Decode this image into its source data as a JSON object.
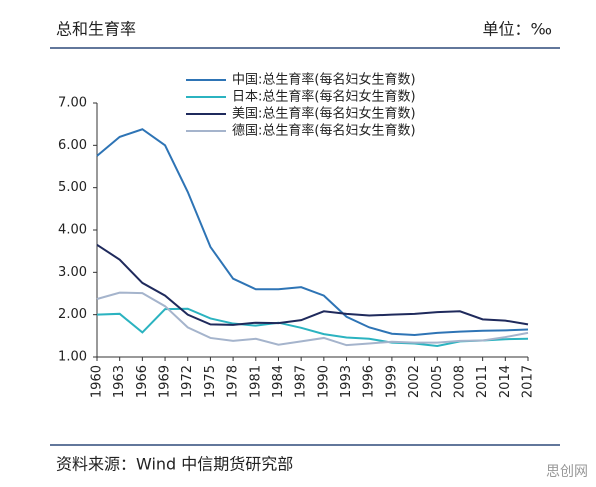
{
  "header": {
    "title": "总和生育率",
    "unit": "单位：‰"
  },
  "footer": {
    "source": "资料来源：Wind  中信期货研究部"
  },
  "watermark": "思创网",
  "chart_data": {
    "type": "line",
    "x": [
      1960,
      1963,
      1966,
      1969,
      1972,
      1975,
      1978,
      1981,
      1984,
      1987,
      1990,
      1993,
      1996,
      1999,
      2002,
      2005,
      2008,
      2011,
      2014,
      2017
    ],
    "xlim": [
      1960,
      2017
    ],
    "xticks": [
      1960,
      1963,
      1966,
      1969,
      1972,
      1975,
      1978,
      1981,
      1984,
      1987,
      1990,
      1993,
      1996,
      1999,
      2002,
      2005,
      2008,
      2011,
      2014,
      2017
    ],
    "ylim": [
      1,
      7
    ],
    "yticks": [
      {
        "value": 1,
        "label": "1.00"
      },
      {
        "value": 2,
        "label": "2.00"
      },
      {
        "value": 3,
        "label": "3.00"
      },
      {
        "value": 4,
        "label": "4.00"
      },
      {
        "value": 5,
        "label": "5.00"
      },
      {
        "value": 6,
        "label": "6.00"
      },
      {
        "value": 7,
        "label": "7.00"
      }
    ],
    "series": [
      {
        "name": "中国:总生育率(每名妇女生育数)",
        "color": "#2e74b5",
        "values": [
          5.75,
          6.2,
          6.38,
          6.0,
          4.9,
          3.6,
          2.85,
          2.6,
          2.6,
          2.65,
          2.45,
          1.95,
          1.7,
          1.55,
          1.52,
          1.57,
          1.6,
          1.62,
          1.63,
          1.65
        ]
      },
      {
        "name": "日本:总生育率(每名妇女生育数)",
        "color": "#2bb3c0",
        "values": [
          2.0,
          2.02,
          1.58,
          2.13,
          2.14,
          1.91,
          1.79,
          1.74,
          1.81,
          1.69,
          1.54,
          1.46,
          1.43,
          1.34,
          1.32,
          1.26,
          1.37,
          1.39,
          1.42,
          1.43
        ]
      },
      {
        "name": "美国:总生育率(每名妇女生育数)",
        "color": "#1f2a5c",
        "values": [
          3.65,
          3.3,
          2.75,
          2.45,
          2.0,
          1.77,
          1.76,
          1.81,
          1.8,
          1.87,
          2.08,
          2.02,
          1.98,
          2.0,
          2.02,
          2.06,
          2.08,
          1.89,
          1.86,
          1.77
        ]
      },
      {
        "name": "德国:总生育率(每名妇女生育数)",
        "color": "#a5b4cc",
        "values": [
          2.37,
          2.52,
          2.51,
          2.2,
          1.7,
          1.45,
          1.38,
          1.43,
          1.29,
          1.37,
          1.45,
          1.28,
          1.32,
          1.36,
          1.34,
          1.34,
          1.38,
          1.39,
          1.47,
          1.57
        ]
      }
    ]
  }
}
